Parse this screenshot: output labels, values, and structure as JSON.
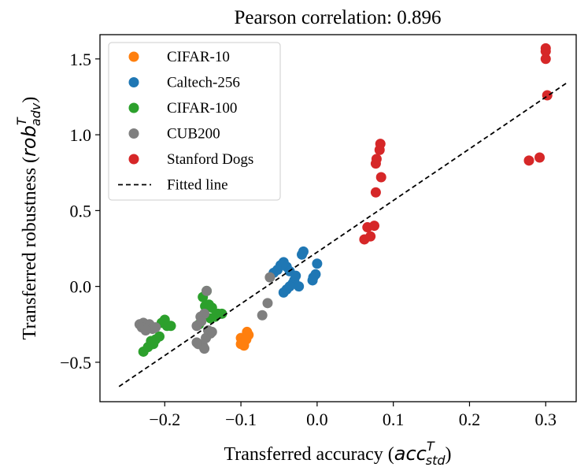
{
  "chart_data": {
    "type": "scatter",
    "title": "Pearson correlation: 0.896",
    "xlabel": {
      "text": "Transferred accuracy (",
      "math_base": "acc",
      "math_sup": "T",
      "math_sub": "std",
      "close": ")"
    },
    "ylabel": {
      "text": "Transferred robustness (",
      "math_base": "rob",
      "math_sup": "T",
      "math_sub": "adv",
      "close": ")"
    },
    "xlim": [
      -0.285,
      0.34
    ],
    "ylim": [
      -0.76,
      1.66
    ],
    "xticks": [
      -0.2,
      -0.1,
      0.0,
      0.1,
      0.2,
      0.3
    ],
    "xtick_labels": [
      "−0.2",
      "−0.1",
      "0.0",
      "0.1",
      "0.2",
      "0.3"
    ],
    "yticks": [
      -0.5,
      0.0,
      0.5,
      1.0,
      1.5
    ],
    "ytick_labels": [
      "−0.5",
      "0.0",
      "0.5",
      "1.0",
      "1.5"
    ],
    "grid": false,
    "legend_position": "upper-left",
    "series": [
      {
        "name": "CIFAR-10",
        "color": "#ff7f0e",
        "points": [
          [
            -0.1,
            -0.34
          ],
          [
            -0.098,
            -0.37
          ],
          [
            -0.095,
            -0.36
          ],
          [
            -0.092,
            -0.3
          ],
          [
            -0.09,
            -0.32
          ],
          [
            -0.096,
            -0.39
          ],
          [
            -0.1,
            -0.38
          ],
          [
            -0.093,
            -0.35
          ]
        ]
      },
      {
        "name": "Caltech-256",
        "color": "#1f77b4",
        "points": [
          [
            -0.057,
            0.09
          ],
          [
            -0.052,
            0.11
          ],
          [
            -0.048,
            0.14
          ],
          [
            -0.044,
            0.16
          ],
          [
            -0.04,
            0.13
          ],
          [
            -0.036,
            0.1
          ],
          [
            -0.032,
            0.02
          ],
          [
            -0.03,
            0.04
          ],
          [
            -0.028,
            0.07
          ],
          [
            -0.024,
            0.0
          ],
          [
            -0.02,
            0.21
          ],
          [
            -0.018,
            0.23
          ],
          [
            -0.044,
            -0.04
          ],
          [
            -0.04,
            -0.02
          ],
          [
            -0.036,
            0.0
          ],
          [
            -0.005,
            0.06
          ],
          [
            -0.002,
            0.08
          ],
          [
            0.0,
            0.15
          ],
          [
            -0.006,
            0.04
          ]
        ]
      },
      {
        "name": "CIFAR-100",
        "color": "#2ca02c",
        "points": [
          [
            -0.228,
            -0.43
          ],
          [
            -0.222,
            -0.4
          ],
          [
            -0.215,
            -0.38
          ],
          [
            -0.212,
            -0.35
          ],
          [
            -0.207,
            -0.33
          ],
          [
            -0.204,
            -0.24
          ],
          [
            -0.2,
            -0.22
          ],
          [
            -0.197,
            -0.26
          ],
          [
            -0.192,
            -0.26
          ],
          [
            -0.218,
            -0.36
          ],
          [
            -0.155,
            -0.25
          ],
          [
            -0.15,
            -0.07
          ],
          [
            -0.147,
            -0.13
          ],
          [
            -0.142,
            -0.12
          ],
          [
            -0.138,
            -0.14
          ],
          [
            -0.134,
            -0.2
          ],
          [
            -0.13,
            -0.18
          ],
          [
            -0.125,
            -0.18
          ],
          [
            -0.145,
            -0.03
          ],
          [
            -0.14,
            -0.21
          ]
        ]
      },
      {
        "name": "CUB200",
        "color": "#7f7f7f",
        "points": [
          [
            -0.233,
            -0.25
          ],
          [
            -0.228,
            -0.24
          ],
          [
            -0.224,
            -0.26
          ],
          [
            -0.22,
            -0.25
          ],
          [
            -0.216,
            -0.28
          ],
          [
            -0.212,
            -0.27
          ],
          [
            -0.23,
            -0.27
          ],
          [
            -0.225,
            -0.29
          ],
          [
            -0.158,
            -0.26
          ],
          [
            -0.156,
            -0.38
          ],
          [
            -0.153,
            -0.2
          ],
          [
            -0.15,
            -0.39
          ],
          [
            -0.148,
            -0.18
          ],
          [
            -0.146,
            -0.34
          ],
          [
            -0.143,
            -0.29
          ],
          [
            -0.14,
            -0.31
          ],
          [
            -0.145,
            -0.03
          ],
          [
            -0.148,
            -0.41
          ],
          [
            -0.138,
            -0.3
          ],
          [
            -0.062,
            0.06
          ],
          [
            -0.065,
            -0.11
          ],
          [
            -0.072,
            -0.19
          ],
          [
            -0.152,
            -0.23
          ],
          [
            -0.158,
            -0.37
          ]
        ]
      },
      {
        "name": "Stanford Dogs",
        "color": "#d62728",
        "points": [
          [
            0.062,
            0.31
          ],
          [
            0.066,
            0.39
          ],
          [
            0.07,
            0.33
          ],
          [
            0.075,
            0.4
          ],
          [
            0.077,
            0.62
          ],
          [
            0.077,
            0.81
          ],
          [
            0.078,
            0.84
          ],
          [
            0.082,
            0.9
          ],
          [
            0.083,
            0.94
          ],
          [
            0.084,
            0.72
          ],
          [
            0.278,
            0.83
          ],
          [
            0.292,
            0.85
          ],
          [
            0.3,
            1.5
          ],
          [
            0.3,
            1.55
          ],
          [
            0.3,
            1.57
          ],
          [
            0.302,
            1.26
          ]
        ]
      }
    ],
    "fitted_line": {
      "name": "Fitted line",
      "color": "#000000",
      "style": "dashed",
      "x": [
        -0.26,
        0.327
      ],
      "y": [
        -0.66,
        1.34
      ]
    }
  }
}
